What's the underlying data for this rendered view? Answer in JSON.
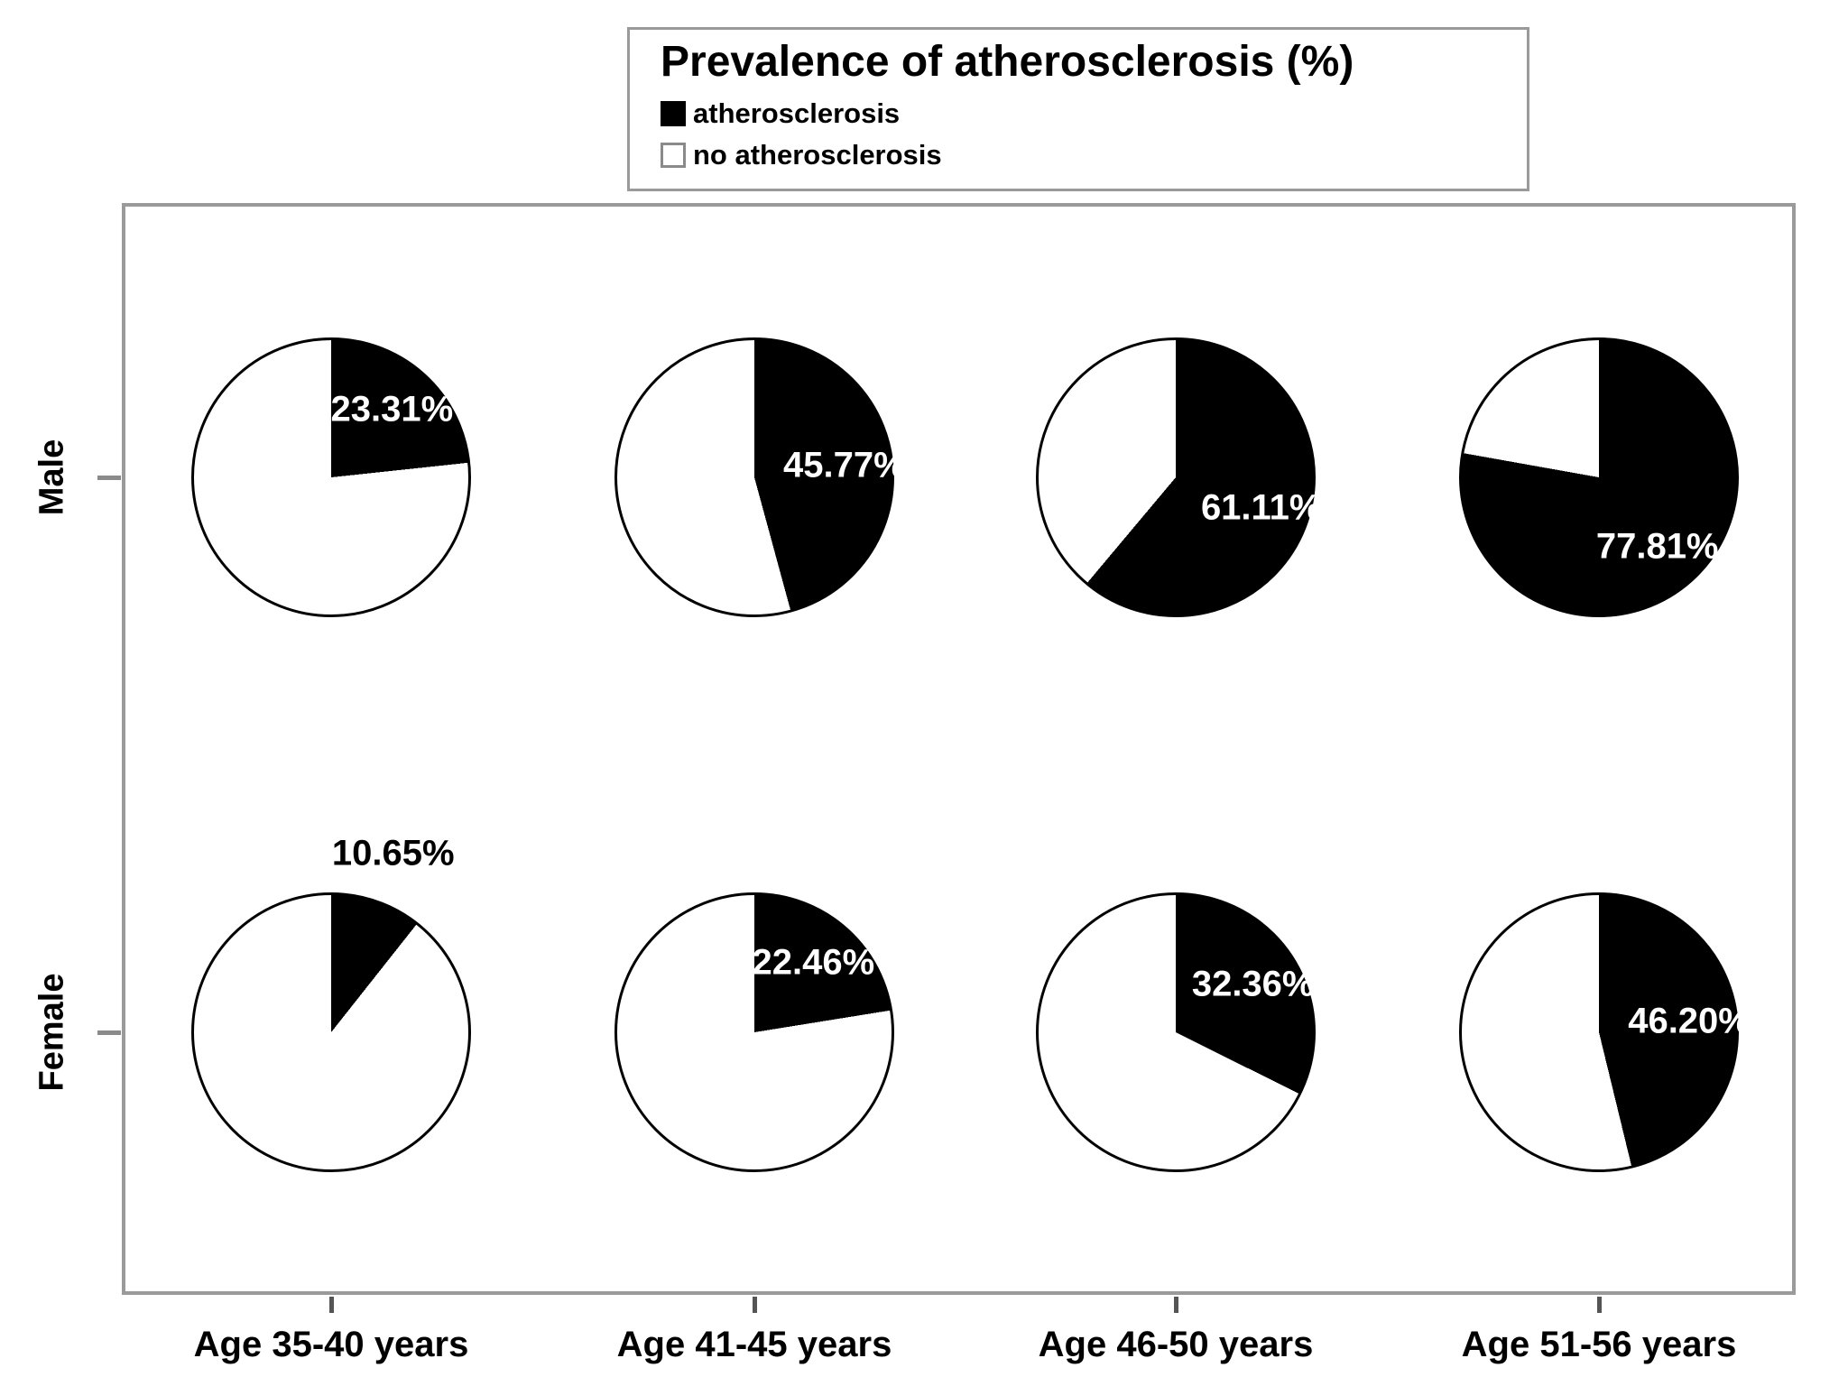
{
  "title": "Prevalence of atherosclerosis (%)",
  "legend": {
    "items": [
      {
        "label": "atherosclerosis",
        "swatch": "filled-black-square-icon"
      },
      {
        "label": "no atherosclerosis",
        "swatch": "open-white-square-icon"
      }
    ]
  },
  "colors": {
    "slice_atherosclerosis": "#000000",
    "slice_no_atherosclerosis": "#ffffff",
    "frame_border": "#9a9a9a",
    "text": "#000000",
    "inside_label": "#ffffff"
  },
  "chart_data": {
    "type": "pie",
    "title": "Prevalence of atherosclerosis (%)",
    "layout": "2 rows x 4 columns grid of pies inside a gray frame; legend box with title at top center",
    "rows": [
      "Male",
      "Female"
    ],
    "categories": [
      "Age 35-40 years",
      "Age 41-45 years",
      "Age 46-50 years",
      "Age 51-56 years"
    ],
    "series": [
      {
        "name": "Male",
        "values": [
          23.31,
          45.77,
          61.11,
          77.81
        ]
      },
      {
        "name": "Female",
        "values": [
          10.65,
          22.46,
          32.36,
          46.2
        ]
      }
    ],
    "value_labels": [
      [
        "23.31%",
        "45.77%",
        "61.11%",
        "77.81%"
      ],
      [
        "10.65%",
        "22.46%",
        "32.36%",
        "46.20%"
      ]
    ],
    "slice_meaning": "black slice = atherosclerosis share, white remainder = no atherosclerosis",
    "slice_start": "12 o'clock, clockwise",
    "legend_position": "top-center boxed with title"
  }
}
